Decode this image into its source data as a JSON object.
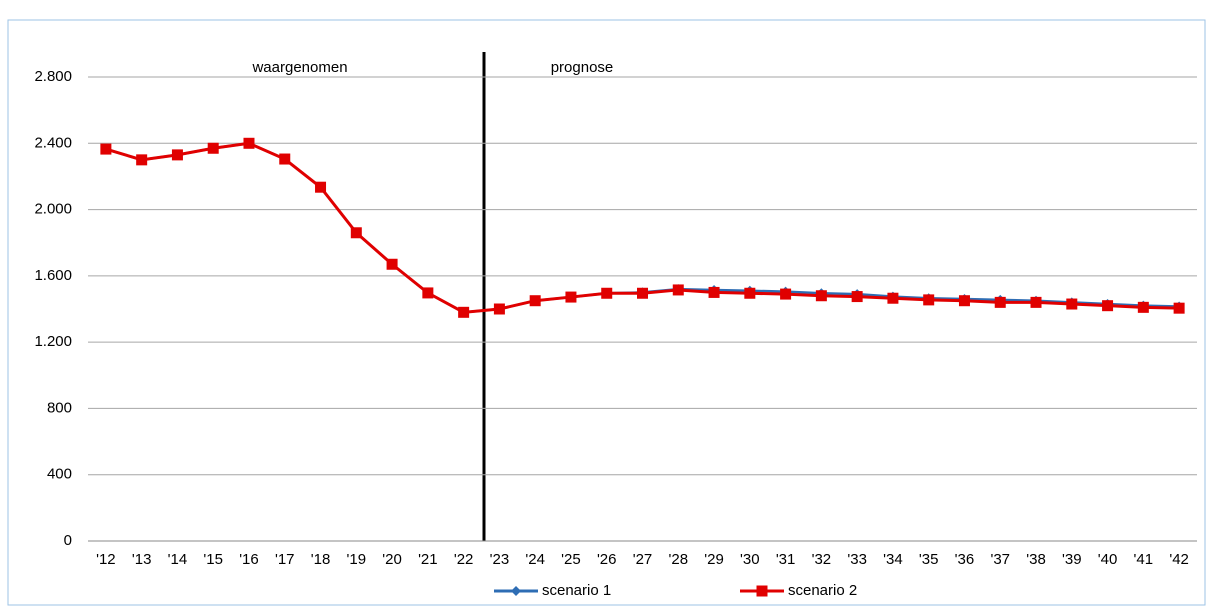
{
  "chart_data": {
    "type": "line",
    "annotations": [
      "waargenomen",
      "prognose"
    ],
    "categories": [
      "'12",
      "'13",
      "'14",
      "'15",
      "'16",
      "'17",
      "'18",
      "'19",
      "'20",
      "'21",
      "'22",
      "'23",
      "'24",
      "'25",
      "'26",
      "'27",
      "'28",
      "'29",
      "'30",
      "'31",
      "'32",
      "'33",
      "'34",
      "'35",
      "'36",
      "'37",
      "'38",
      "'39",
      "'40",
      "'41",
      "'42"
    ],
    "series": [
      {
        "name": "scenario 1",
        "color": "#2e6db4",
        "marker": "diamond",
        "values": [
          2365,
          2300,
          2330,
          2370,
          2400,
          2305,
          2135,
          1860,
          1670,
          1497,
          1380,
          1400,
          1450,
          1472,
          1495,
          1500,
          1520,
          1515,
          1510,
          1505,
          1495,
          1490,
          1475,
          1465,
          1460,
          1455,
          1450,
          1440,
          1430,
          1420,
          1415
        ]
      },
      {
        "name": "scenario 2",
        "color": "#e00000",
        "marker": "square",
        "values": [
          2365,
          2300,
          2330,
          2370,
          2400,
          2305,
          2135,
          1860,
          1670,
          1497,
          1380,
          1400,
          1450,
          1472,
          1495,
          1495,
          1515,
          1500,
          1495,
          1490,
          1480,
          1475,
          1465,
          1455,
          1450,
          1440,
          1440,
          1430,
          1420,
          1410,
          1405
        ]
      }
    ],
    "ylim": [
      0,
      2800
    ],
    "yticks": [
      0,
      400,
      800,
      {
        "value": 1200,
        "label": "1.200"
      },
      {
        "value": 1600,
        "label": "1.600"
      },
      {
        "value": 2000,
        "label": "2.000"
      },
      {
        "value": 2400,
        "label": "2.400"
      },
      {
        "value": 2800,
        "label": "2.800"
      }
    ],
    "grid": true
  }
}
